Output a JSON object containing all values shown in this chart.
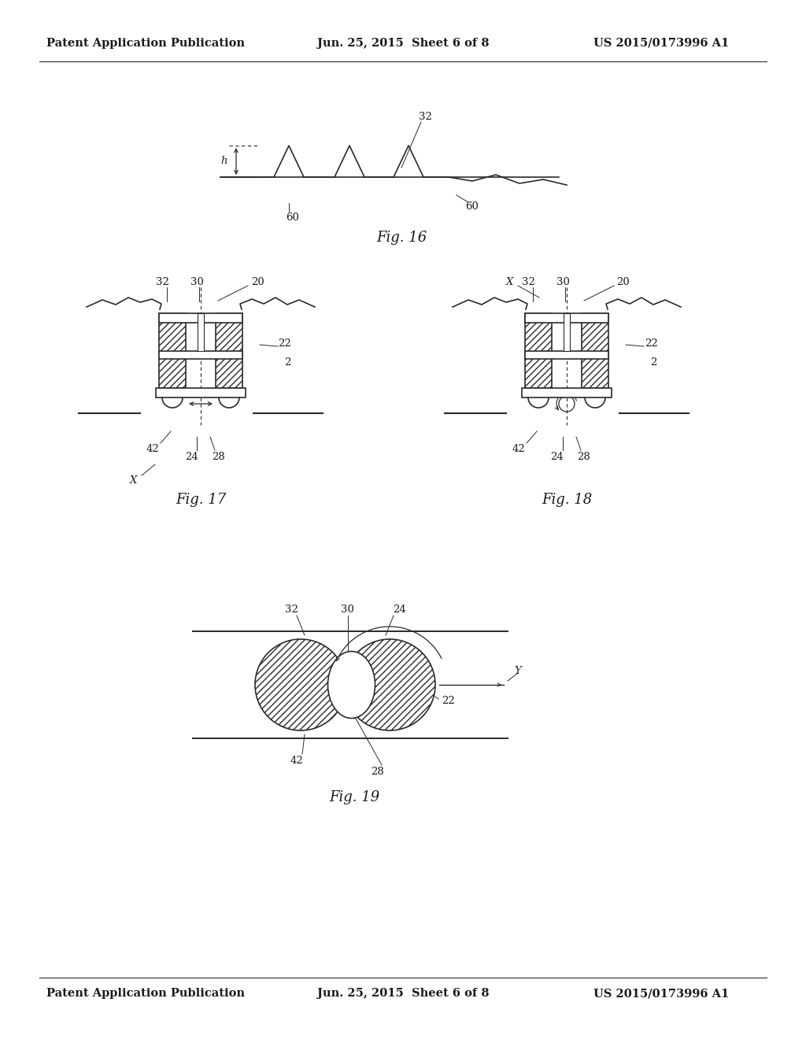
{
  "bg_color": "#ffffff",
  "text_color": "#1a1a1a",
  "header_left": "Patent Application Publication",
  "header_mid": "Jun. 25, 2015  Sheet 6 of 8",
  "header_right": "US 2015/0173996 A1",
  "fig16_label": "Fig. 16",
  "fig17_label": "Fig. 17",
  "fig18_label": "Fig. 18",
  "fig19_label": "Fig. 19",
  "line_color": "#2a2a2a",
  "font_size_header": 10.5,
  "font_size_label": 13,
  "font_size_ref": 9.5
}
